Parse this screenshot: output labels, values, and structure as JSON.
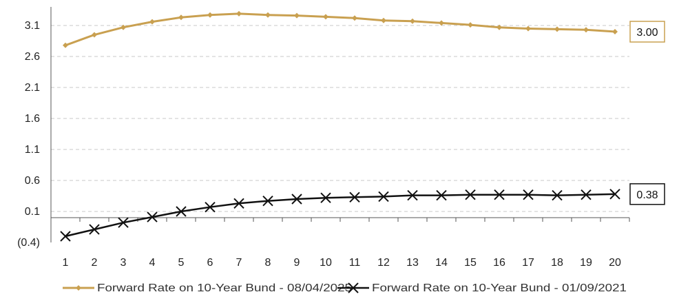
{
  "chart_data": {
    "type": "line",
    "x": [
      1,
      2,
      3,
      4,
      5,
      6,
      7,
      8,
      9,
      10,
      11,
      12,
      13,
      14,
      15,
      16,
      17,
      18,
      19,
      20
    ],
    "y_ticks": [
      "3.1",
      "2.6",
      "2.1",
      "1.6",
      "1.1",
      "0.6",
      "0.1",
      "(0.4)"
    ],
    "y_tick_values": [
      3.1,
      2.6,
      2.1,
      1.6,
      1.1,
      0.6,
      0.1,
      -0.4
    ],
    "ylim": [
      -0.4,
      3.45
    ],
    "grid": true,
    "legend_position": "bottom",
    "series": [
      {
        "name": "Forward Rate on 10-Year Bund - 08/04/2025",
        "color": "#c9a050",
        "marker": "diamond",
        "values": [
          2.78,
          2.95,
          3.07,
          3.16,
          3.23,
          3.27,
          3.29,
          3.27,
          3.26,
          3.24,
          3.22,
          3.18,
          3.17,
          3.14,
          3.11,
          3.07,
          3.05,
          3.04,
          3.03,
          3.0
        ],
        "end_label": "3.00"
      },
      {
        "name": "Forward Rate on 10-Year Bund - 01/09/2021",
        "color": "#111111",
        "marker": "x",
        "values": [
          -0.3,
          -0.19,
          -0.08,
          0.01,
          0.1,
          0.17,
          0.23,
          0.27,
          0.3,
          0.32,
          0.33,
          0.34,
          0.36,
          0.36,
          0.37,
          0.37,
          0.37,
          0.36,
          0.37,
          0.38
        ],
        "end_label": "0.38"
      }
    ]
  }
}
